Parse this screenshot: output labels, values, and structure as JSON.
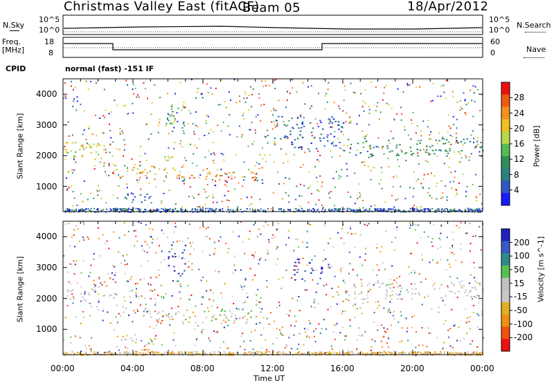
{
  "header": {
    "site": "Christmas Valley East (fitACF)",
    "beam": "Beam 05",
    "date": "18/Apr/2012"
  },
  "strips": {
    "nsky": {
      "label": "N.Sky",
      "ticks": [
        "10^5",
        "10^0"
      ]
    },
    "nsearch": {
      "label": "N.Search",
      "ticks": [
        "10^5",
        "10^0"
      ]
    },
    "freq": {
      "label": "Freq.\n[MHz]",
      "ticks": [
        "18",
        "8"
      ]
    },
    "nave": {
      "label": "Nave",
      "ticks": [
        "60",
        "0"
      ]
    },
    "cpid": {
      "label": "CPID",
      "value": "normal (fast) -151 IF"
    }
  },
  "colors": {
    "power": [
      "#1a1aff",
      "#2f57c8",
      "#2d7f7f",
      "#2e8f58",
      "#55bb55",
      "#b6d84a",
      "#f0c020",
      "#f39020",
      "#f25a10",
      "#ee1010"
    ],
    "velocity": [
      "#2020c0",
      "#3a58c8",
      "#2f8a8a",
      "#58c050",
      "#c0c0c0",
      "#c8c8c8",
      "#e0b020",
      "#f09010",
      "#f05010",
      "#ee1010"
    ]
  },
  "chart_data": [
    {
      "type": "heatmap",
      "panel": "power",
      "ylabel": "Slant Range [km]",
      "ylim": [
        180,
        4500
      ],
      "yticks": [
        "4000",
        "3000",
        "2000",
        "1000"
      ],
      "xlim": [
        0,
        24
      ],
      "colorbar": {
        "label": "Power [dB]",
        "ticks": [
          "28",
          "24",
          "20",
          "16",
          "12",
          "8",
          "4"
        ],
        "range": [
          0,
          32
        ]
      },
      "features": [
        {
          "x0": 0.0,
          "x1": 3.0,
          "y0": 1850,
          "y1": 2500,
          "value": 18
        },
        {
          "x0": 3.0,
          "x1": 7.0,
          "y0": 1300,
          "y1": 1700,
          "value": 22
        },
        {
          "x0": 7.0,
          "x1": 11.0,
          "y0": 1200,
          "y1": 1500,
          "value": 24
        },
        {
          "x0": 9.0,
          "x1": 11.0,
          "y0": 1200,
          "y1": 1350,
          "value": 28
        },
        {
          "x0": 11.0,
          "x1": 13.0,
          "y0": 1100,
          "y1": 1300,
          "value": 8
        },
        {
          "x0": 3.0,
          "x1": 5.0,
          "y0": 500,
          "y1": 800,
          "value": 8
        },
        {
          "x0": 6.0,
          "x1": 7.0,
          "y0": 2800,
          "y1": 3800,
          "value": 14
        },
        {
          "x0": 16.0,
          "x1": 24.0,
          "y0": 2000,
          "y1": 2600,
          "value": 10
        },
        {
          "x0": 12.0,
          "x1": 16.0,
          "y0": 2200,
          "y1": 3300,
          "value": 6
        }
      ]
    },
    {
      "type": "heatmap",
      "panel": "velocity",
      "ylabel": "Slant Range [km]",
      "ylim": [
        180,
        4500
      ],
      "yticks": [
        "4000",
        "3000",
        "2000",
        "1000"
      ],
      "xlim": [
        0,
        24
      ],
      "xlabel": "Time UT",
      "xticks": [
        "00:00",
        "04:00",
        "08:00",
        "12:00",
        "16:00",
        "20:00",
        "00:00"
      ],
      "colorbar": {
        "label": "Velocity [m s^-1]",
        "ticks": [
          "200",
          "100",
          "50",
          "15",
          "-15",
          "-50",
          "-100",
          "-200"
        ],
        "range": [
          -250,
          250
        ]
      },
      "features": [
        {
          "x0": 0.0,
          "x1": 3.0,
          "y0": 1900,
          "y1": 2400,
          "value": 0
        },
        {
          "x0": 1.5,
          "x1": 3.0,
          "y0": 2400,
          "y1": 2700,
          "value": 150
        },
        {
          "x0": 3.0,
          "x1": 7.0,
          "y0": 1400,
          "y1": 1700,
          "value": 0
        },
        {
          "x0": 5.0,
          "x1": 6.5,
          "y0": 1200,
          "y1": 1400,
          "value": 150
        },
        {
          "x0": 6.5,
          "x1": 11.0,
          "y0": 1200,
          "y1": 1500,
          "value": 40
        },
        {
          "x0": 8.0,
          "x1": 11.0,
          "y0": 1300,
          "y1": 1700,
          "value": -60
        },
        {
          "x0": 3.0,
          "x1": 5.0,
          "y0": 500,
          "y1": 800,
          "value": 40
        },
        {
          "x0": 13.0,
          "x1": 15.0,
          "y0": 2600,
          "y1": 3300,
          "value": -200
        },
        {
          "x0": 6.0,
          "x1": 7.0,
          "y0": 2800,
          "y1": 3800,
          "value": -200
        },
        {
          "x0": 16.0,
          "x1": 24.0,
          "y0": 2000,
          "y1": 2600,
          "value": 0
        }
      ]
    }
  ]
}
